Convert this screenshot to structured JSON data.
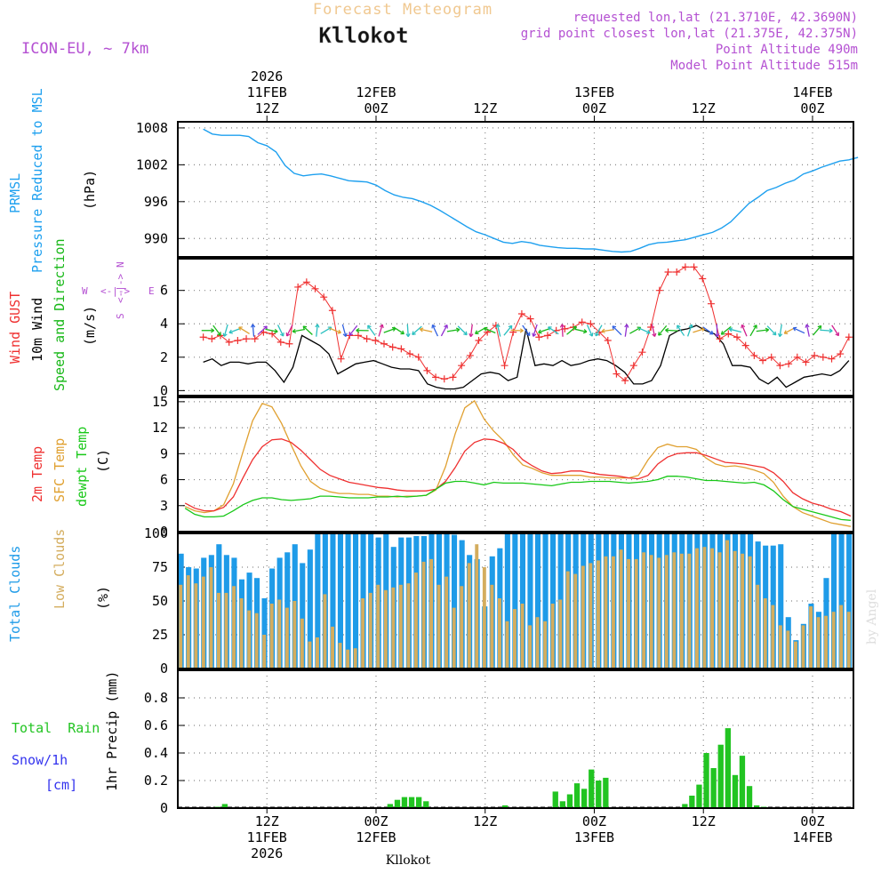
{
  "header": {
    "product": "Forecast Meteogram",
    "location": "Kllokot",
    "model": "ICON-EU, ~ 7km",
    "requested": "requested lon,lat (21.3710E, 42.3690N)",
    "grid_point": "grid point closest lon,lat (21.375E, 42.375N)",
    "point_alt": "Point Altitude 490m",
    "model_alt": "Model Point Altitude 515m",
    "credit": "by Angel",
    "footer_location": "Kllokot"
  },
  "colors": {
    "pressure": "#1ea0ef",
    "gust": "#ef3030",
    "wind": "#000000",
    "dir": "#18b818",
    "temp2m": "#ef3030",
    "sfc": "#e0a030",
    "dewpt": "#18c818",
    "total_cloud": "#1e9be8",
    "low_cloud": "#d4ad5e",
    "precip": "#22c422",
    "snow_label": "#3333ee",
    "header_purple": "#b450d2",
    "header_orange": "#f0c890"
  },
  "top_axis": {
    "labels": [
      {
        "t": 7,
        "lines": [
          "2026",
          "11FEB",
          "12Z"
        ]
      },
      {
        "t": 19,
        "lines": [
          "12FEB",
          "00Z"
        ]
      },
      {
        "t": 31,
        "lines": [
          "12Z"
        ]
      },
      {
        "t": 43,
        "lines": [
          "13FEB",
          "00Z"
        ]
      },
      {
        "t": 55,
        "lines": [
          "12Z"
        ]
      },
      {
        "t": 67,
        "lines": [
          "14FEB",
          "00Z"
        ]
      }
    ]
  },
  "bottom_axis": {
    "labels": [
      {
        "t": 7,
        "lines": [
          "12Z",
          "11FEB",
          "2026"
        ]
      },
      {
        "t": 19,
        "lines": [
          "00Z",
          "12FEB"
        ]
      },
      {
        "t": 31,
        "lines": [
          "12Z"
        ]
      },
      {
        "t": 43,
        "lines": [
          "00Z",
          "13FEB"
        ]
      },
      {
        "t": 55,
        "lines": [
          "12Z"
        ]
      },
      {
        "t": 67,
        "lines": [
          "00Z",
          "14FEB"
        ]
      }
    ]
  },
  "panel_labels": {
    "pressure": [
      "PRMSL",
      "Pressure Reduced to MSL",
      "(hPa)"
    ],
    "wind": [
      "Wind GUST",
      "10m Wind",
      "Speed and Direction",
      "(m/s)"
    ],
    "compass": {
      "n": "N",
      "s": "S",
      "w": "W",
      "e": "E",
      "arrow": "<-|->"
    },
    "temp": [
      "2m Temp",
      "SFC Temp",
      "dewpt Temp",
      "(C)"
    ],
    "cloud": [
      "Total Clouds",
      "Low Clouds",
      "(%)"
    ],
    "precip": [
      "Total  Rain",
      "Snow/1h",
      "[cm]",
      "1hr Precip (mm)"
    ]
  },
  "chart_data": [
    {
      "type": "line",
      "title": "PRMSL Pressure Reduced to MSL",
      "ylabel": "hPa",
      "x_unit": "hours since 2026-02-11 05Z",
      "ylim": [
        987,
        1009
      ],
      "yticks": [
        990,
        996,
        1002,
        1008
      ],
      "series": [
        {
          "name": "PRMSL",
          "values": [
            1007.8,
            1007.0,
            1006.8,
            1006.8,
            1006.8,
            1006.6,
            1005.6,
            1005.1,
            1004.1,
            1001.9,
            1000.6,
            1000.2,
            1000.4,
            1000.5,
            1000.2,
            999.8,
            999.4,
            999.3,
            999.2,
            998.7,
            997.8,
            997.1,
            996.7,
            996.5,
            996.0,
            995.4,
            994.6,
            993.7,
            992.8,
            991.9,
            991.1,
            990.6,
            990.0,
            989.4,
            989.2,
            989.5,
            989.3,
            988.9,
            988.7,
            988.5,
            988.4,
            988.4,
            988.3,
            988.3,
            988.1,
            987.9,
            987.8,
            987.9,
            988.4,
            989.0,
            989.3,
            989.4,
            989.6,
            989.8,
            990.2,
            990.6,
            991.0,
            991.7,
            992.7,
            994.2,
            995.7,
            996.7,
            997.8,
            998.3,
            999.0,
            999.5,
            1000.5,
            1001.0,
            1001.6,
            1002.1,
            1002.6,
            1002.8,
            1003.2
          ]
        }
      ]
    },
    {
      "type": "line",
      "title": "Wind GUST / 10m Wind Speed and Direction",
      "ylabel": "m/s",
      "ylim": [
        -0.3,
        7.9
      ],
      "yticks": [
        0,
        2,
        4,
        6
      ],
      "series": [
        {
          "name": "Wind GUST",
          "values": [
            3.2,
            3.1,
            3.3,
            2.9,
            3.0,
            3.1,
            3.1,
            3.5,
            3.4,
            2.9,
            2.8,
            6.2,
            6.5,
            6.1,
            5.6,
            4.8,
            1.9,
            3.3,
            3.3,
            3.1,
            3.0,
            2.8,
            2.6,
            2.5,
            2.2,
            2.0,
            1.2,
            0.8,
            0.7,
            0.8,
            1.5,
            2.1,
            3.0,
            3.5,
            3.9,
            1.5,
            3.5,
            4.6,
            4.3,
            3.2,
            3.3,
            3.6,
            3.7,
            3.8,
            4.1,
            4.0,
            3.5,
            3.0,
            1.0,
            0.6,
            1.5,
            2.3,
            3.8,
            6.0,
            7.1,
            7.1,
            7.4,
            7.4,
            6.7,
            5.2,
            3.1,
            3.4,
            3.2,
            2.7,
            2.1,
            1.8,
            2.0,
            1.5,
            1.6,
            2.0,
            1.7,
            2.1,
            2.0,
            1.9,
            2.2,
            3.2
          ]
        },
        {
          "name": "10m Wind",
          "values": [
            1.7,
            1.9,
            1.5,
            1.7,
            1.7,
            1.6,
            1.7,
            1.7,
            1.2,
            0.5,
            1.4,
            3.3,
            3.0,
            2.7,
            2.2,
            1.0,
            1.3,
            1.6,
            1.7,
            1.8,
            1.6,
            1.4,
            1.3,
            1.3,
            1.2,
            0.4,
            0.2,
            0.1,
            0.1,
            0.2,
            0.6,
            1.0,
            1.1,
            1.0,
            0.6,
            0.8,
            3.7,
            1.5,
            1.6,
            1.5,
            1.8,
            1.5,
            1.6,
            1.8,
            1.9,
            1.8,
            1.5,
            1.1,
            0.4,
            0.4,
            0.6,
            1.5,
            3.3,
            3.6,
            3.7,
            3.9,
            3.6,
            3.4,
            2.8,
            1.5,
            1.5,
            1.4,
            0.7,
            0.4,
            0.8,
            0.2,
            0.5,
            0.8,
            0.9,
            1.0,
            0.9,
            1.2,
            1.8
          ]
        }
      ]
    },
    {
      "type": "line",
      "title": "2m Temp / SFC Temp / dewpt Temp",
      "ylabel": "C",
      "ylim": [
        0,
        15.5
      ],
      "yticks": [
        0,
        3,
        6,
        9,
        12,
        15
      ],
      "series": [
        {
          "name": "2m Temp",
          "values": [
            3.3,
            2.7,
            2.4,
            2.4,
            2.8,
            4.0,
            6.2,
            8.3,
            9.8,
            10.6,
            10.7,
            10.3,
            9.4,
            8.3,
            7.2,
            6.5,
            6.1,
            5.7,
            5.5,
            5.3,
            5.1,
            5.0,
            4.8,
            4.7,
            4.7,
            4.7,
            4.9,
            5.8,
            7.4,
            9.3,
            10.3,
            10.7,
            10.6,
            10.2,
            9.5,
            8.3,
            7.6,
            7.0,
            6.7,
            6.8,
            7.0,
            7.0,
            6.8,
            6.6,
            6.5,
            6.4,
            6.2,
            6.1,
            6.5,
            7.8,
            8.6,
            9.0,
            9.1,
            9.1,
            8.8,
            8.4,
            8.0,
            7.9,
            7.8,
            7.6,
            7.4,
            6.8,
            5.8,
            4.5,
            3.8,
            3.3,
            3.0,
            2.6,
            2.3,
            1.8
          ]
        },
        {
          "name": "SFC Temp",
          "values": [
            2.9,
            2.4,
            2.2,
            2.4,
            3.1,
            5.5,
            9.2,
            12.8,
            14.8,
            14.4,
            12.5,
            10.0,
            7.6,
            5.8,
            5.0,
            4.6,
            4.4,
            4.4,
            4.3,
            4.3,
            4.1,
            4.1,
            4.0,
            4.1,
            4.1,
            4.2,
            4.8,
            7.5,
            11.3,
            14.3,
            15.1,
            13.0,
            11.6,
            10.5,
            8.9,
            7.7,
            7.3,
            6.8,
            6.5,
            6.5,
            6.5,
            6.5,
            6.3,
            6.3,
            6.2,
            6.2,
            6.2,
            6.5,
            8.3,
            9.7,
            10.1,
            9.8,
            9.8,
            9.5,
            8.5,
            7.8,
            7.5,
            7.6,
            7.4,
            7.1,
            6.7,
            5.7,
            4.1,
            2.9,
            2.2,
            1.8,
            1.4,
            1.0,
            0.8,
            0.6
          ]
        },
        {
          "name": "dewpt Temp",
          "values": [
            2.7,
            2.0,
            1.7,
            1.7,
            1.8,
            2.4,
            3.1,
            3.6,
            3.9,
            3.9,
            3.7,
            3.6,
            3.7,
            3.8,
            4.1,
            4.1,
            4.0,
            3.9,
            3.9,
            3.9,
            4.0,
            4.0,
            4.1,
            4.0,
            4.1,
            4.2,
            4.9,
            5.6,
            5.8,
            5.8,
            5.6,
            5.4,
            5.7,
            5.6,
            5.6,
            5.6,
            5.5,
            5.4,
            5.3,
            5.5,
            5.7,
            5.7,
            5.8,
            5.8,
            5.8,
            5.7,
            5.6,
            5.7,
            5.8,
            6.0,
            6.4,
            6.4,
            6.3,
            6.1,
            5.9,
            5.9,
            5.8,
            5.7,
            5.6,
            5.7,
            5.4,
            4.7,
            3.7,
            2.9,
            2.6,
            2.3,
            2.0,
            1.7,
            1.4,
            1.3
          ]
        }
      ]
    },
    {
      "type": "bar",
      "title": "Total Clouds / Low Clouds",
      "ylabel": "%",
      "ylim": [
        0,
        100
      ],
      "yticks": [
        0,
        25,
        50,
        75,
        100
      ],
      "series": [
        {
          "name": "Total Clouds",
          "values": [
            85,
            75,
            74,
            82,
            84,
            92,
            84,
            82,
            66,
            71,
            67,
            52,
            74,
            82,
            86,
            92,
            78,
            88,
            100,
            100,
            100,
            100,
            100,
            100,
            100,
            100,
            97,
            100,
            90,
            97,
            97,
            98,
            98,
            100,
            100,
            100,
            99,
            95,
            84,
            81,
            46,
            83,
            89,
            100,
            100,
            100,
            100,
            100,
            100,
            100,
            100,
            100,
            100,
            100,
            100,
            100,
            100,
            100,
            100,
            100,
            100,
            100,
            100,
            100,
            100,
            100,
            100,
            100,
            100,
            100,
            100,
            100,
            100,
            100,
            100,
            100,
            94,
            91,
            91,
            92,
            38,
            21,
            33,
            48,
            42,
            67,
            100,
            100,
            100
          ]
        },
        {
          "name": "Low Clouds",
          "values": [
            62,
            69,
            63,
            68,
            75,
            56,
            56,
            61,
            52,
            43,
            41,
            25,
            48,
            51,
            45,
            50,
            37,
            20,
            23,
            55,
            31,
            19,
            14,
            15,
            52,
            56,
            62,
            58,
            60,
            62,
            63,
            71,
            79,
            81,
            62,
            68,
            45,
            61,
            78,
            92,
            75,
            62,
            52,
            35,
            44,
            48,
            32,
            38,
            35,
            48,
            51,
            72,
            70,
            76,
            78,
            80,
            83,
            83,
            88,
            81,
            81,
            86,
            84,
            82,
            84,
            86,
            85,
            85,
            89,
            90,
            89,
            86,
            95,
            87,
            85,
            83,
            62,
            52,
            47,
            32,
            28,
            20,
            32,
            46,
            38,
            39,
            42,
            47,
            42
          ]
        }
      ]
    },
    {
      "type": "bar",
      "title": "1hr Precip",
      "ylabel": "mm",
      "ylim": [
        0,
        1.0
      ],
      "yticks": [
        0,
        0.2,
        0.4,
        0.6,
        0.8
      ],
      "series": [
        {
          "name": "Total Rain",
          "values": [
            0,
            0,
            0,
            0,
            0,
            0.01,
            0.03,
            0,
            0,
            0,
            0,
            0,
            0,
            0,
            0,
            0,
            0,
            0,
            0,
            0,
            0,
            0,
            0,
            0,
            0,
            0,
            0,
            0,
            0,
            0.03,
            0.06,
            0.08,
            0.08,
            0.08,
            0.05,
            0,
            0,
            0,
            0,
            0,
            0,
            0,
            0,
            0,
            0,
            0.02,
            0,
            0,
            0,
            0,
            0,
            0,
            0.12,
            0.05,
            0.1,
            0.18,
            0.14,
            0.28,
            0.2,
            0.22,
            0,
            0,
            0,
            0,
            0,
            0,
            0,
            0,
            0,
            0,
            0.03,
            0.09,
            0.17,
            0.4,
            0.29,
            0.46,
            0.58,
            0.24,
            0.38,
            0.16,
            0.02,
            0.01,
            0,
            0,
            0,
            0,
            0,
            0,
            0,
            0,
            0,
            0,
            0,
            0
          ]
        }
      ]
    }
  ]
}
